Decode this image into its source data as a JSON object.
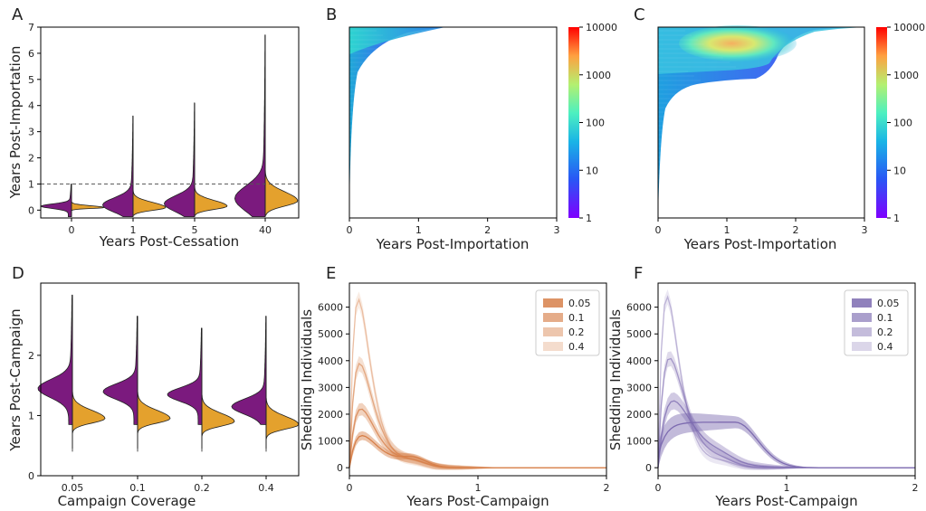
{
  "figure": {
    "colors": {
      "violin_left": "#7b1a7e",
      "violin_right": "#e4a12d",
      "e_base": "#d7804a",
      "f_base": "#7d6bb0"
    }
  },
  "chart_data": [
    {
      "panel": "A",
      "type": "violin",
      "xlabel": "Years Post-Cessation",
      "ylabel": "Years Post-Importation",
      "categories": [
        "0",
        "1",
        "5",
        "40"
      ],
      "ylim": [
        -0.3,
        7
      ],
      "yticks": [
        0,
        1,
        2,
        3,
        4,
        5,
        6,
        7
      ],
      "reference_line": 1,
      "violins": [
        {
          "max": 1.0,
          "left_peak": 0.15,
          "right_peak": 0.1
        },
        {
          "max": 3.6,
          "left_peak": 0.2,
          "right_peak": 0.1
        },
        {
          "max": 4.1,
          "left_peak": 0.25,
          "right_peak": 0.15
        },
        {
          "max": 6.7,
          "left_peak": 0.45,
          "right_peak": 0.35
        }
      ]
    },
    {
      "panel": "B",
      "type": "heatmap",
      "xlabel": "Years Post-Importation",
      "xlim": [
        0,
        3
      ],
      "xticks": [
        0,
        1,
        2,
        3
      ],
      "colorbar_ticks": [
        "1",
        "10",
        "100",
        "1000",
        "10000"
      ]
    },
    {
      "panel": "C",
      "type": "heatmap",
      "xlabel": "Years Post-Importation",
      "xlim": [
        0,
        3
      ],
      "xticks": [
        0,
        1,
        2,
        3
      ],
      "colorbar_ticks": [
        "1",
        "10",
        "100",
        "1000",
        "10000"
      ]
    },
    {
      "panel": "D",
      "type": "violin",
      "xlabel": "Campaign Coverage",
      "ylabel": "Years Post-Campaign",
      "categories": [
        "0.05",
        "0.1",
        "0.2",
        "0.4"
      ],
      "ylim": [
        0,
        3.2
      ],
      "yticks": [
        0,
        1,
        2
      ],
      "violins": [
        {
          "max": 3.0,
          "left_peak": 1.45,
          "right_peak": 0.95
        },
        {
          "max": 2.65,
          "left_peak": 1.4,
          "right_peak": 0.95
        },
        {
          "max": 2.45,
          "left_peak": 1.35,
          "right_peak": 0.9
        },
        {
          "max": 2.65,
          "left_peak": 1.15,
          "right_peak": 0.85
        }
      ]
    },
    {
      "panel": "E",
      "type": "area",
      "xlabel": "Years Post-Campaign",
      "ylabel": "Shedding Individuals",
      "xlim": [
        0,
        2
      ],
      "ylim": [
        -300,
        6900
      ],
      "xticks": [
        0,
        1,
        2
      ],
      "yticks": [
        0,
        1000,
        2000,
        3000,
        4000,
        5000,
        6000
      ],
      "legend": "top-right",
      "series": [
        {
          "name": "0.05",
          "peak_x": 0.1,
          "peak_y": 1200,
          "band": 180
        },
        {
          "name": "0.1",
          "peak_x": 0.09,
          "peak_y": 2200,
          "band": 250
        },
        {
          "name": "0.2",
          "peak_x": 0.08,
          "peak_y": 3900,
          "band": 300
        },
        {
          "name": "0.4",
          "peak_x": 0.07,
          "peak_y": 6300,
          "band": 320
        }
      ]
    },
    {
      "panel": "F",
      "type": "area",
      "xlabel": "Years Post-Campaign",
      "ylabel": "Shedding Individuals",
      "xlim": [
        0,
        2
      ],
      "ylim": [
        -300,
        6900
      ],
      "xticks": [
        0,
        1,
        2
      ],
      "yticks": [
        0,
        1000,
        2000,
        3000,
        4000,
        5000,
        6000
      ],
      "legend": "top-right",
      "series": [
        {
          "name": "0.05",
          "peak_x": 0.6,
          "peak_y": 1700,
          "band": 450
        },
        {
          "name": "0.1",
          "peak_x": 0.12,
          "peak_y": 2500,
          "band": 350
        },
        {
          "name": "0.2",
          "peak_x": 0.09,
          "peak_y": 4100,
          "band": 300
        },
        {
          "name": "0.4",
          "peak_x": 0.07,
          "peak_y": 6400,
          "band": 300
        }
      ]
    }
  ]
}
